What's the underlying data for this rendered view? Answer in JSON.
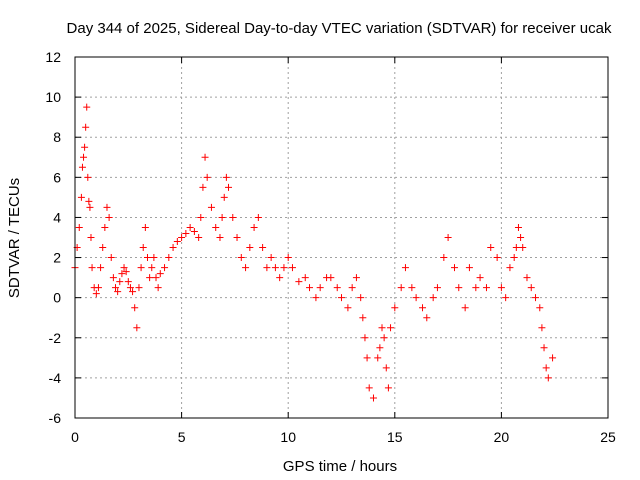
{
  "chart_data": {
    "type": "scatter",
    "title": "Day 344 of 2025, Sidereal Day-to-day VTEC variation (SDTVAR) for receiver ucak",
    "xlabel": "GPS time / hours",
    "ylabel": "SDTVAR / TECUs",
    "xlim": [
      0,
      25
    ],
    "ylim": [
      -6,
      12
    ],
    "xticks": [
      0,
      5,
      10,
      15,
      20,
      25
    ],
    "yticks": [
      -6,
      -4,
      -2,
      0,
      2,
      4,
      6,
      8,
      10,
      12
    ],
    "grid": true,
    "marker": "+",
    "color": "#ff0000",
    "series": [
      {
        "name": "SDTVAR",
        "x": [
          0.0,
          0.1,
          0.2,
          0.3,
          0.35,
          0.4,
          0.45,
          0.5,
          0.55,
          0.6,
          0.65,
          0.7,
          0.75,
          0.8,
          0.9,
          1.0,
          1.1,
          1.2,
          1.3,
          1.4,
          1.5,
          1.6,
          1.7,
          1.8,
          1.9,
          2.0,
          2.1,
          2.2,
          2.3,
          2.4,
          2.5,
          2.6,
          2.7,
          2.8,
          2.9,
          3.0,
          3.1,
          3.2,
          3.3,
          3.4,
          3.5,
          3.6,
          3.7,
          3.8,
          3.9,
          4.0,
          4.2,
          4.4,
          4.6,
          4.8,
          5.0,
          5.2,
          5.4,
          5.6,
          5.8,
          5.9,
          6.0,
          6.1,
          6.2,
          6.4,
          6.6,
          6.8,
          6.9,
          7.0,
          7.1,
          7.2,
          7.4,
          7.6,
          7.8,
          8.0,
          8.2,
          8.4,
          8.6,
          8.8,
          9.0,
          9.2,
          9.4,
          9.6,
          9.8,
          10.0,
          10.2,
          10.5,
          10.8,
          11.0,
          11.3,
          11.5,
          11.8,
          12.0,
          12.3,
          12.5,
          12.8,
          13.0,
          13.2,
          13.4,
          13.5,
          13.6,
          13.7,
          13.8,
          14.0,
          14.2,
          14.3,
          14.4,
          14.5,
          14.6,
          14.7,
          14.8,
          15.0,
          15.3,
          15.5,
          15.8,
          16.0,
          16.3,
          16.5,
          16.8,
          17.0,
          17.3,
          17.5,
          17.8,
          18.0,
          18.3,
          18.5,
          18.8,
          19.0,
          19.3,
          19.5,
          19.8,
          20.0,
          20.2,
          20.4,
          20.6,
          20.7,
          20.8,
          20.9,
          21.0,
          21.2,
          21.4,
          21.6,
          21.8,
          21.9,
          22.0,
          22.1,
          22.2,
          22.4
        ],
        "y": [
          1.5,
          2.5,
          3.5,
          5.0,
          6.5,
          7.0,
          7.5,
          8.5,
          9.5,
          6.0,
          4.8,
          4.5,
          3.0,
          1.5,
          0.5,
          0.2,
          0.5,
          1.5,
          2.5,
          3.5,
          4.5,
          4.0,
          2.0,
          1.0,
          0.5,
          0.3,
          0.8,
          1.2,
          1.5,
          1.3,
          0.8,
          0.5,
          0.3,
          -0.5,
          -1.5,
          0.5,
          1.5,
          2.5,
          3.5,
          2.0,
          1.0,
          1.5,
          2.0,
          1.0,
          0.5,
          1.2,
          1.5,
          2.0,
          2.5,
          2.8,
          3.0,
          3.2,
          3.5,
          3.3,
          3.0,
          4.0,
          5.5,
          7.0,
          6.0,
          4.5,
          3.5,
          3.0,
          4.0,
          5.0,
          6.0,
          5.5,
          4.0,
          3.0,
          2.0,
          1.5,
          2.5,
          3.5,
          4.0,
          2.5,
          1.5,
          2.0,
          1.5,
          1.0,
          1.5,
          2.0,
          1.5,
          0.8,
          1.0,
          0.5,
          0.0,
          0.5,
          1.0,
          1.0,
          0.5,
          0.0,
          -0.5,
          0.5,
          1.0,
          0.0,
          -1.0,
          -2.0,
          -3.0,
          -4.5,
          -5.0,
          -3.0,
          -2.5,
          -1.5,
          -2.0,
          -3.5,
          -4.5,
          -1.5,
          -0.5,
          0.5,
          1.5,
          0.5,
          0.0,
          -0.5,
          -1.0,
          0.0,
          0.5,
          2.0,
          3.0,
          1.5,
          0.5,
          -0.5,
          1.5,
          0.5,
          1.0,
          0.5,
          2.5,
          2.0,
          0.5,
          0.0,
          1.5,
          2.0,
          2.5,
          3.5,
          3.0,
          2.5,
          1.0,
          0.5,
          0.0,
          -0.5,
          -1.5,
          -2.5,
          -3.5,
          -4.0,
          -3.0
        ]
      }
    ]
  }
}
